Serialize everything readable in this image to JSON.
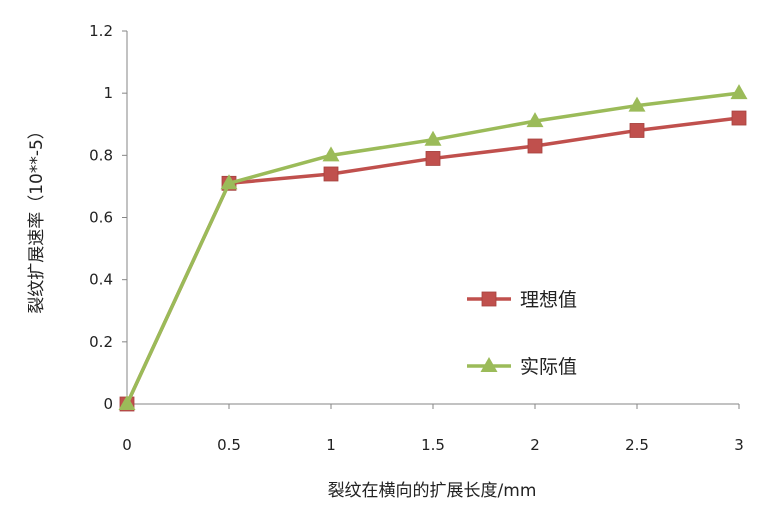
{
  "chart_data": {
    "type": "line",
    "x": [
      0,
      0.5,
      1,
      1.5,
      2,
      2.5,
      3
    ],
    "x_tick_labels": [
      "0",
      "0.5",
      "1",
      "1.5",
      "2",
      "2.5",
      "3"
    ],
    "y_tick_labels": [
      "0",
      "0.2",
      "0.4",
      "0.6",
      "0.8",
      "1",
      "1.2"
    ],
    "xlim": [
      0,
      3
    ],
    "ylim": [
      0,
      1.2
    ],
    "xlabel": "裂纹在横向的扩展长度/mm",
    "ylabel": "裂纹扩展速率（10**-5）",
    "grid": false,
    "legend_position": "right",
    "series": [
      {
        "name": "理想值",
        "marker": "square",
        "color": "#c0504d",
        "values": [
          0,
          0.71,
          0.74,
          0.79,
          0.83,
          0.88,
          0.92
        ]
      },
      {
        "name": "实际值",
        "marker": "triangle",
        "color": "#9bbb59",
        "values": [
          0,
          0.71,
          0.8,
          0.85,
          0.91,
          0.96,
          1.0
        ]
      }
    ]
  }
}
